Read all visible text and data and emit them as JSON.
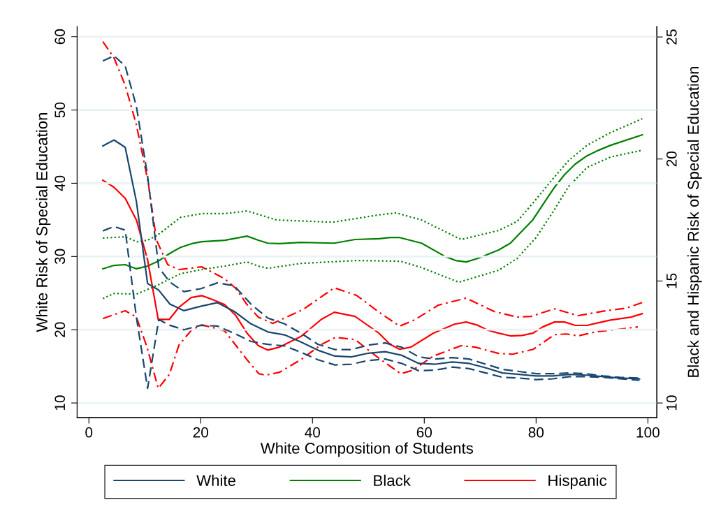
{
  "chart_data": {
    "type": "line",
    "xlabel": "White Composition of Students",
    "ylabel": "White Risk of Special Education",
    "y2label": "Black and Hispanic Risk of Special Education",
    "xlim": [
      -2.1,
      101.6
    ],
    "xticks": [
      0,
      20,
      40,
      60,
      80,
      100
    ],
    "ylim": [
      8,
      61.4
    ],
    "yticks": [
      10,
      20,
      30,
      40,
      50,
      60
    ],
    "y2lim": [
      9.4,
      25.43
    ],
    "y2ticks": [
      10,
      15,
      20,
      25
    ],
    "grid": "y",
    "legend": "bottom",
    "series": [
      {
        "name": "White",
        "color": "#1a476f",
        "line_style": "solid",
        "x": [
          2.5,
          4.5,
          6.5,
          8.5,
          10.5,
          12.5,
          14.5,
          17,
          20,
          23,
          26,
          29,
          32,
          35,
          38,
          41,
          44,
          47,
          50,
          53,
          56,
          59,
          62,
          65,
          68,
          71,
          74,
          77,
          80,
          83,
          86,
          89,
          92,
          95,
          98.5
        ],
        "values": [
          45.1,
          45.9,
          44.9,
          37.5,
          26.3,
          25.4,
          23.5,
          22.6,
          23.2,
          23.7,
          22.5,
          20.8,
          19.7,
          19.3,
          18.3,
          17.2,
          16.4,
          16.3,
          16.8,
          17.0,
          16.5,
          15.4,
          15.3,
          15.6,
          15.4,
          14.8,
          14.1,
          13.9,
          13.7,
          13.7,
          13.9,
          13.8,
          13.6,
          13.4,
          13.3
        ]
      },
      {
        "color": "#1a476f",
        "line_style": "dashed",
        "x": [
          2.5,
          4.5,
          6.5,
          8.5,
          10.5,
          12.5,
          14.5,
          17,
          20,
          23,
          26,
          29,
          32,
          35,
          38,
          41,
          44,
          47,
          50,
          53,
          56,
          59,
          62,
          65,
          68,
          71,
          74,
          77,
          80,
          83,
          86,
          89,
          92,
          95,
          98.5
        ],
        "values": [
          56.7,
          57.4,
          56.0,
          50.5,
          41,
          28.5,
          26.5,
          25.2,
          25.6,
          26.4,
          26.0,
          23.5,
          21.6,
          20.8,
          19.5,
          18.0,
          17.3,
          17.3,
          17.9,
          18.2,
          17.6,
          16.3,
          16.0,
          16.2,
          16.0,
          15.3,
          14.6,
          14.3,
          14.0,
          14.0,
          14.1,
          14.0,
          13.7,
          13.5,
          13.4
        ]
      },
      {
        "color": "#1a476f",
        "line_style": "dashed",
        "x": [
          2.5,
          4.5,
          6.5,
          8.5,
          10.5,
          12.5,
          14.5,
          17,
          20,
          23,
          26,
          29,
          32,
          35,
          38,
          41,
          44,
          47,
          50,
          53,
          56,
          59,
          62,
          65,
          68,
          71,
          74,
          77,
          80,
          83,
          86,
          89,
          92,
          95,
          98.5
        ],
        "values": [
          33.5,
          34.1,
          33.6,
          21.7,
          12.0,
          21.4,
          20.6,
          20.0,
          20.6,
          20.5,
          19.5,
          18.4,
          18.0,
          17.8,
          16.9,
          15.9,
          15.2,
          15.3,
          15.8,
          16.0,
          15.4,
          14.4,
          14.5,
          14.9,
          14.7,
          14.1,
          13.5,
          13.4,
          13.2,
          13.3,
          13.6,
          13.6,
          13.5,
          13.3,
          13.1
        ]
      },
      {
        "name": "Black",
        "color": "#008000",
        "line_style": "solid",
        "axis": "y2",
        "x": [
          2.5,
          4.5,
          6.5,
          8.5,
          10.5,
          12.4,
          14.4,
          16.4,
          18.4,
          20.2,
          24.3,
          28.3,
          30.3,
          32,
          34.1,
          37.9,
          43.9,
          47.6,
          51.9,
          53.9,
          55.6,
          59.5,
          63.7,
          65.6,
          67.5,
          69.5,
          73.3,
          75.4,
          79.4,
          81.2,
          83.3,
          85.1,
          87,
          89.1,
          91.2,
          93.3,
          99
        ],
        "values": [
          15.5,
          15.64,
          15.67,
          15.5,
          15.61,
          15.81,
          16.12,
          16.38,
          16.53,
          16.61,
          16.67,
          16.84,
          16.67,
          16.55,
          16.53,
          16.58,
          16.55,
          16.7,
          16.73,
          16.78,
          16.78,
          16.55,
          16.01,
          15.84,
          15.78,
          15.92,
          16.27,
          16.55,
          17.5,
          18.13,
          18.84,
          19.36,
          19.79,
          20.13,
          20.36,
          20.56,
          20.99
        ]
      },
      {
        "color": "#008000",
        "line_style": "dotted",
        "axis": "y2",
        "x": [
          2.5,
          6.5,
          8.6,
          10.5,
          12.4,
          16.4,
          20.2,
          24.3,
          28.3,
          30.3,
          33.6,
          43.7,
          51.6,
          55,
          59.5,
          66.6,
          73.3,
          76.6,
          79.5,
          82.9,
          85.8,
          89.1,
          93.3,
          99
        ],
        "values": [
          16.76,
          16.81,
          16.61,
          16.67,
          16.9,
          17.61,
          17.76,
          17.76,
          17.87,
          17.73,
          17.5,
          17.41,
          17.7,
          17.79,
          17.5,
          16.7,
          17.07,
          17.44,
          18.21,
          19.16,
          19.93,
          20.56,
          21.08,
          21.65
        ]
      },
      {
        "color": "#008000",
        "line_style": "dotted",
        "axis": "y2",
        "x": [
          2.5,
          4.5,
          8.5,
          12.4,
          16.4,
          20.2,
          24.3,
          28.3,
          30.3,
          32,
          37.9,
          47.9,
          55.8,
          59.5,
          66.2,
          73.3,
          76.6,
          80,
          83.3,
          85.8,
          89.1,
          93.3,
          99
        ],
        "values": [
          14.28,
          14.49,
          14.46,
          14.84,
          15.3,
          15.47,
          15.61,
          15.78,
          15.61,
          15.52,
          15.72,
          15.84,
          15.81,
          15.55,
          14.95,
          15.44,
          15.92,
          16.78,
          17.93,
          18.87,
          19.65,
          20.08,
          20.36
        ]
      },
      {
        "name": "Hispanic",
        "color": "#ff0000",
        "line_style": "solid",
        "axis": "y2",
        "x": [
          2.5,
          4.5,
          6.5,
          8.5,
          10.5,
          12.4,
          14.4,
          16.1,
          18.3,
          20.2,
          22.2,
          24.3,
          26.3,
          28.3,
          30.3,
          32,
          34.1,
          37.9,
          41.6,
          43.9,
          47.6,
          51.9,
          53.9,
          55.6,
          57.6,
          61.6,
          65.4,
          67.5,
          69.4,
          71.4,
          73.3,
          75.4,
          77.5,
          79.4,
          81.2,
          83.3,
          85.1,
          87,
          89.1,
          91.2,
          93.3,
          97,
          99
        ],
        "values": [
          19.13,
          18.84,
          18.39,
          17.5,
          15.87,
          13.43,
          13.43,
          13.92,
          14.32,
          14.4,
          14.23,
          14.03,
          13.58,
          12.86,
          12.35,
          12.17,
          12.29,
          12.72,
          13.43,
          13.72,
          13.55,
          12.86,
          12.4,
          12.2,
          12.29,
          12.86,
          13.23,
          13.32,
          13.2,
          12.98,
          12.86,
          12.75,
          12.77,
          12.86,
          13.12,
          13.32,
          13.32,
          13.18,
          13.18,
          13.29,
          13.4,
          13.52,
          13.66
        ]
      },
      {
        "color": "#ff0000",
        "line_style": "dashdot",
        "axis": "y2",
        "x": [
          2.5,
          4.5,
          6.5,
          8.5,
          10.6,
          12.1,
          14.1,
          16.1,
          20.2,
          24.3,
          26.3,
          28.3,
          30.3,
          32.9,
          38.3,
          43.9,
          47.9,
          51.9,
          55.6,
          58.3,
          62.5,
          67.5,
          72.5,
          76.6,
          79.1,
          83.3,
          87.5,
          92.5,
          96.2,
          99
        ],
        "values": [
          24.81,
          24.14,
          23.02,
          21.4,
          19.05,
          16.67,
          15.67,
          15.47,
          15.58,
          15.09,
          14.69,
          14.03,
          13.52,
          13.26,
          13.83,
          14.72,
          14.41,
          13.72,
          13.15,
          13.41,
          14.01,
          14.3,
          13.75,
          13.52,
          13.55,
          13.86,
          13.58,
          13.78,
          13.89,
          14.12
        ]
      },
      {
        "color": "#ff0000",
        "line_style": "dashdot",
        "axis": "y2",
        "x": [
          2.5,
          6.5,
          8.5,
          10.4,
          12.4,
          14.4,
          16.1,
          18.4,
          20.2,
          22.2,
          24.3,
          28.3,
          30.4,
          31.6,
          34.1,
          37.9,
          41.6,
          44.1,
          47.6,
          51.9,
          55.8,
          57.9,
          61.6,
          66.6,
          69.1,
          73.3,
          75.8,
          79.5,
          83.3,
          85.4,
          87.5,
          90.8,
          94.1,
          98.2
        ],
        "values": [
          13.46,
          13.78,
          13.52,
          12.29,
          10.6,
          11.17,
          12.37,
          13.0,
          13.2,
          13.09,
          12.95,
          11.77,
          11.2,
          11.14,
          11.26,
          11.77,
          12.4,
          12.69,
          12.6,
          11.83,
          11.2,
          11.34,
          11.92,
          12.35,
          12.29,
          12.03,
          12.0,
          12.2,
          12.8,
          12.83,
          12.75,
          12.92,
          13.0,
          13.12
        ]
      }
    ]
  }
}
